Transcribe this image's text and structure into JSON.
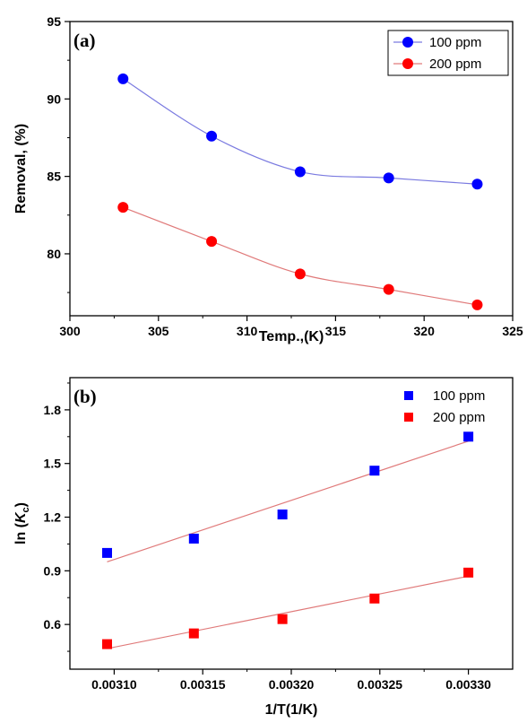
{
  "chart_data": [
    {
      "type": "line",
      "panel_label": "(a)",
      "xlabel": "Temp.,(K)",
      "ylabel": "Removal, (%)",
      "xlim": [
        300,
        325
      ],
      "ylim": [
        76,
        95
      ],
      "xticks": [
        300,
        305,
        310,
        315,
        320,
        325
      ],
      "yticks": [
        80,
        85,
        90,
        95
      ],
      "x_tick_labels": [
        "300",
        "305",
        "310",
        "315",
        "320",
        "325"
      ],
      "y_tick_labels": [
        "80",
        "85",
        "90",
        "95"
      ],
      "legend_position": "top-right",
      "series": [
        {
          "name": "100 ppm",
          "color": "#0000ff",
          "line_color": "#7a7ae0",
          "marker": "circle",
          "x": [
            303,
            308,
            313,
            318,
            323
          ],
          "y": [
            91.3,
            87.6,
            85.3,
            84.9,
            84.5
          ]
        },
        {
          "name": "200 ppm",
          "color": "#ff0000",
          "line_color": "#e07a7a",
          "marker": "circle",
          "x": [
            303,
            308,
            313,
            318,
            323
          ],
          "y": [
            83.0,
            80.8,
            78.7,
            77.7,
            76.7
          ]
        }
      ]
    },
    {
      "type": "scatter",
      "panel_label": "(b)",
      "xlabel": "1/T(1/K)",
      "ylabel": "ln (Kc)",
      "ylabel_main": "ln (",
      "ylabel_italic": "K",
      "ylabel_sub": "c",
      "ylabel_end": ")",
      "xlim": [
        0.003075,
        0.003325
      ],
      "ylim": [
        0.35,
        1.98
      ],
      "xticks": [
        0.0031,
        0.00315,
        0.0032,
        0.00325,
        0.0033
      ],
      "yticks": [
        0.6,
        0.9,
        1.2,
        1.5,
        1.8
      ],
      "x_tick_labels": [
        "0.00310",
        "0.00315",
        "0.00320",
        "0.00325",
        "0.00330"
      ],
      "y_tick_labels": [
        "0.6",
        "0.9",
        "1.2",
        "1.5",
        "1.8"
      ],
      "legend_position": "top-right",
      "series": [
        {
          "name": "100 ppm",
          "color": "#0000ff",
          "line_color": "#e07a7a",
          "marker": "square",
          "x": [
            0.003096,
            0.003145,
            0.003195,
            0.003247,
            0.0033
          ],
          "y": [
            1.0,
            1.08,
            1.215,
            1.46,
            1.65
          ],
          "fit": [
            0.95,
            1.625
          ]
        },
        {
          "name": "200 ppm",
          "color": "#ff0000",
          "line_color": "#e07a7a",
          "marker": "square",
          "x": [
            0.003096,
            0.003145,
            0.003195,
            0.003247,
            0.0033
          ],
          "y": [
            0.49,
            0.55,
            0.63,
            0.745,
            0.89
          ],
          "fit": [
            0.465,
            0.87
          ]
        }
      ]
    }
  ]
}
